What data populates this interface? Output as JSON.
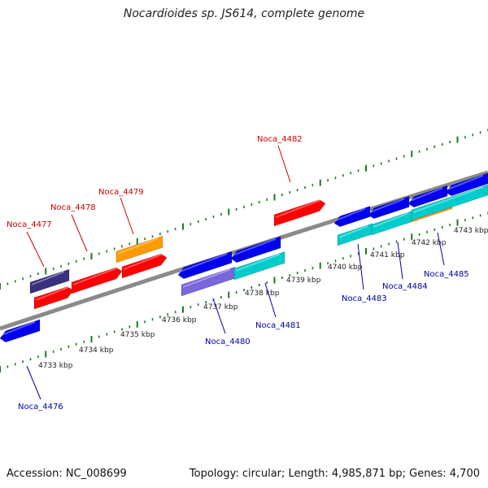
{
  "title": "Nocardioides sp. JS614, complete genome",
  "footer": {
    "accession": "Accession: NC_008699",
    "summary": "Topology: circular; Length: 4,985,871 bp; Genes: 4,700"
  },
  "colors": {
    "backbone": "#8a8a8a",
    "ticks": "#1f7a1f",
    "forward_label": "#cc0000",
    "reverse_label": "#0000aa",
    "gene_red": "#ff0000",
    "gene_orange": "#ff9900",
    "gene_blue": "#0000ee",
    "gene_cyan": "#00cccc",
    "gene_navy": "#3a3080",
    "gene_violet": "#7766dd"
  },
  "scale_labels": [
    "4733 kbp",
    "4734 kbp",
    "4735 kbp",
    "4736 kbp",
    "4737 kbp",
    "4738 kbp",
    "4739 kbp",
    "4740 kbp",
    "4741 kbp",
    "4742 kbp",
    "4743 kbp"
  ],
  "forward_genes": [
    "Noca_4477",
    "Noca_4478",
    "Noca_4479",
    "Noca_4482"
  ],
  "reverse_genes": [
    "Noca_4476",
    "Noca_4480",
    "Noca_4481",
    "Noca_4483",
    "Noca_4484",
    "Noca_4485"
  ]
}
